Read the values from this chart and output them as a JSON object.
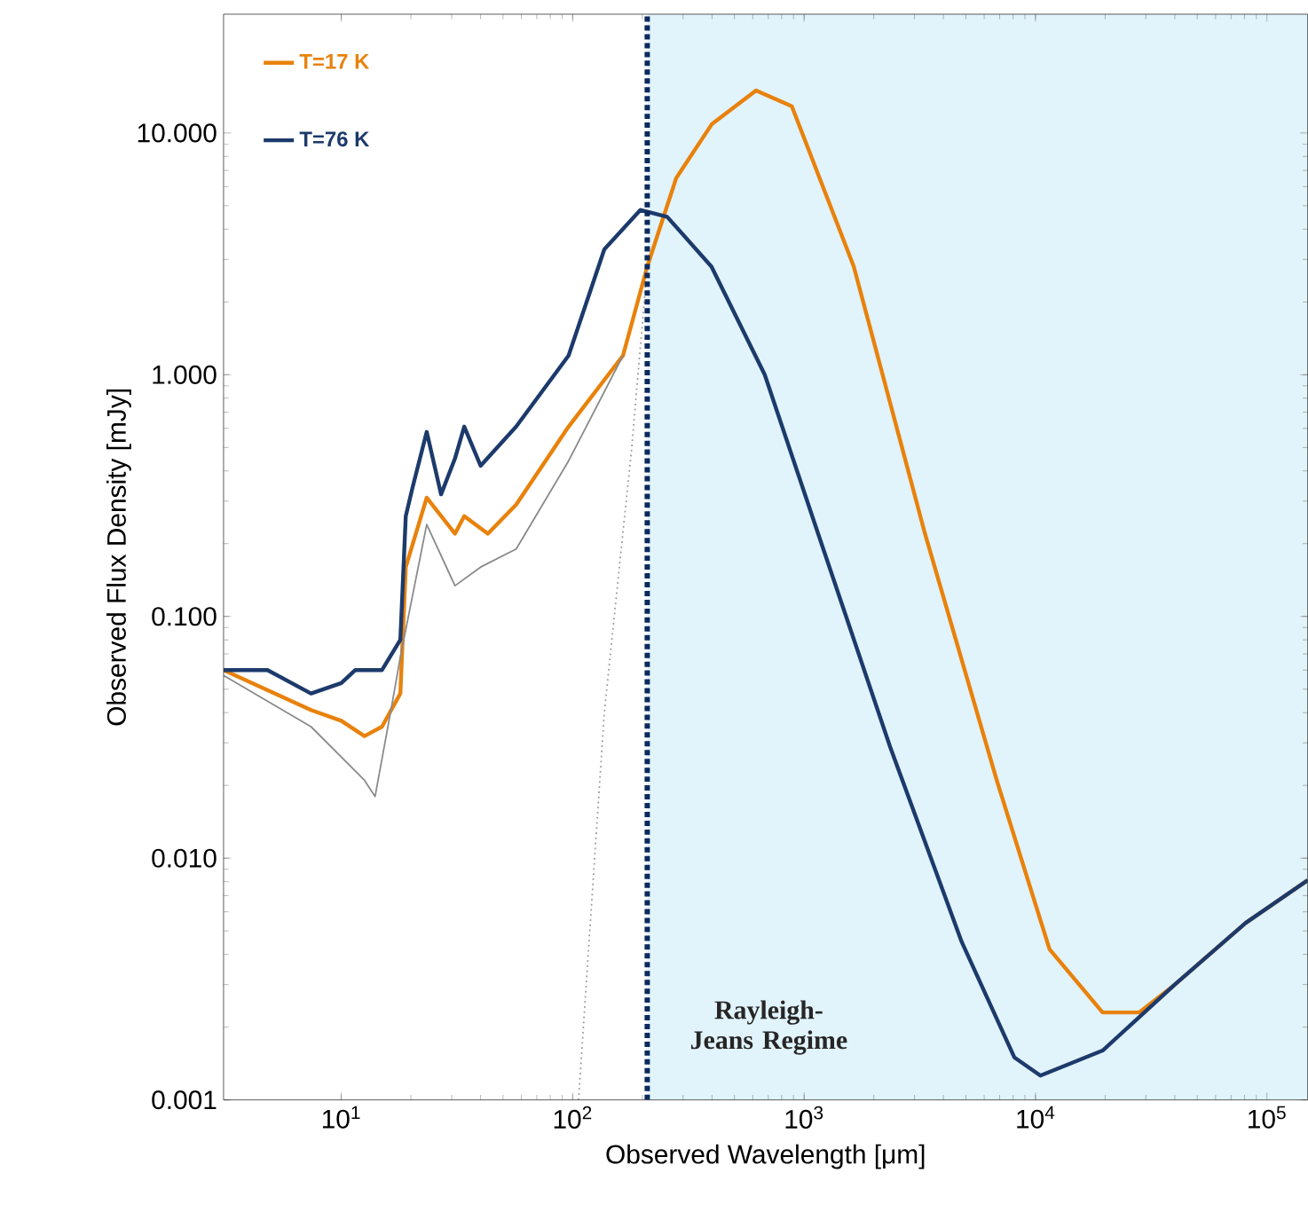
{
  "chart_data": {
    "type": "line",
    "xlabel": "Observed Wavelength [μm]",
    "ylabel": "Observed Flux Density [mJy]",
    "log": "xy",
    "legend": "top left",
    "grid": false,
    "xlim": [
      3.1,
      150000
    ],
    "ylim": [
      0.001,
      31
    ],
    "xticks": [
      {
        "value": 10,
        "label": "10$^{1}$"
      },
      {
        "value": 100,
        "label": "10$^{2}$"
      },
      {
        "value": 1000,
        "label": "10$^{3}$"
      },
      {
        "value": 10000,
        "label": "10$^{4}$"
      },
      {
        "value": 100000,
        "label": "10$^{5}$"
      }
    ],
    "yticks": [
      {
        "value": 0.001,
        "label": "0.001"
      },
      {
        "value": 0.01,
        "label": "0.010"
      },
      {
        "value": 0.1,
        "label": "0.100"
      },
      {
        "value": 1,
        "label": "1.000"
      },
      {
        "value": 10,
        "label": "10.000"
      }
    ],
    "bands": [
      {
        "axis": "x",
        "from": 210,
        "to": 150000,
        "label": "Rayleigh-Jeans Regime",
        "color": "#e1f3fb"
      }
    ],
    "ref_lines": [
      {
        "axis": "x",
        "value": 210,
        "label": null,
        "color": "#0b2a5c",
        "line_style": "dotted"
      }
    ],
    "series": [
      {
        "name": "T=17 K",
        "color": "#e8820c",
        "line_style": "solid",
        "x": [
          3.1,
          7.4,
          10,
          12.6,
          15,
          18,
          19,
          23.4,
          31,
          34,
          43,
          57,
          96,
          165,
          210,
          280,
          400,
          620,
          885,
          1640,
          3330,
          6800,
          11500,
          19500,
          28000,
          40000,
          81000,
          150000
        ],
        "values": [
          0.06,
          0.041,
          0.037,
          0.032,
          0.035,
          0.048,
          0.16,
          0.31,
          0.22,
          0.26,
          0.22,
          0.29,
          0.61,
          1.2,
          2.8,
          6.5,
          10.9,
          15,
          12.9,
          2.8,
          0.22,
          0.021,
          0.0042,
          0.0023,
          0.0023,
          0.003,
          0.0054,
          0.0081
        ]
      },
      {
        "name": "T=76 K",
        "color": "#1c3a6b",
        "line_style": "solid",
        "x": [
          3.1,
          4.8,
          7.4,
          10,
          11.5,
          15,
          18,
          19,
          20.3,
          23.4,
          27,
          31,
          34,
          40,
          57,
          96,
          137,
          196,
          256,
          398,
          676,
          1150,
          2350,
          4800,
          8100,
          10500,
          19500,
          40000,
          81000,
          150000
        ],
        "values": [
          0.06,
          0.06,
          0.048,
          0.053,
          0.06,
          0.06,
          0.08,
          0.26,
          0.34,
          0.58,
          0.32,
          0.45,
          0.61,
          0.42,
          0.61,
          1.2,
          3.3,
          4.8,
          4.5,
          2.8,
          1.0,
          0.22,
          0.029,
          0.0045,
          0.0015,
          0.00126,
          0.0016,
          0.003,
          0.0054,
          0.0081
        ]
      },
      {
        "color": "#8a8a8a",
        "line_style": "solid",
        "x": [
          3.1,
          7.4,
          12.6,
          14,
          16.4,
          18,
          23.4,
          31,
          40,
          57,
          96,
          165
        ],
        "values": [
          0.057,
          0.035,
          0.021,
          0.018,
          0.041,
          0.068,
          0.24,
          0.134,
          0.16,
          0.19,
          0.44,
          1.2
        ]
      },
      {
        "color": "#9a9a9a",
        "line_style": "dotted",
        "x": [
          106,
          137,
          180,
          210
        ],
        "values": [
          0.001,
          0.04,
          0.5,
          2.8
        ]
      }
    ]
  }
}
